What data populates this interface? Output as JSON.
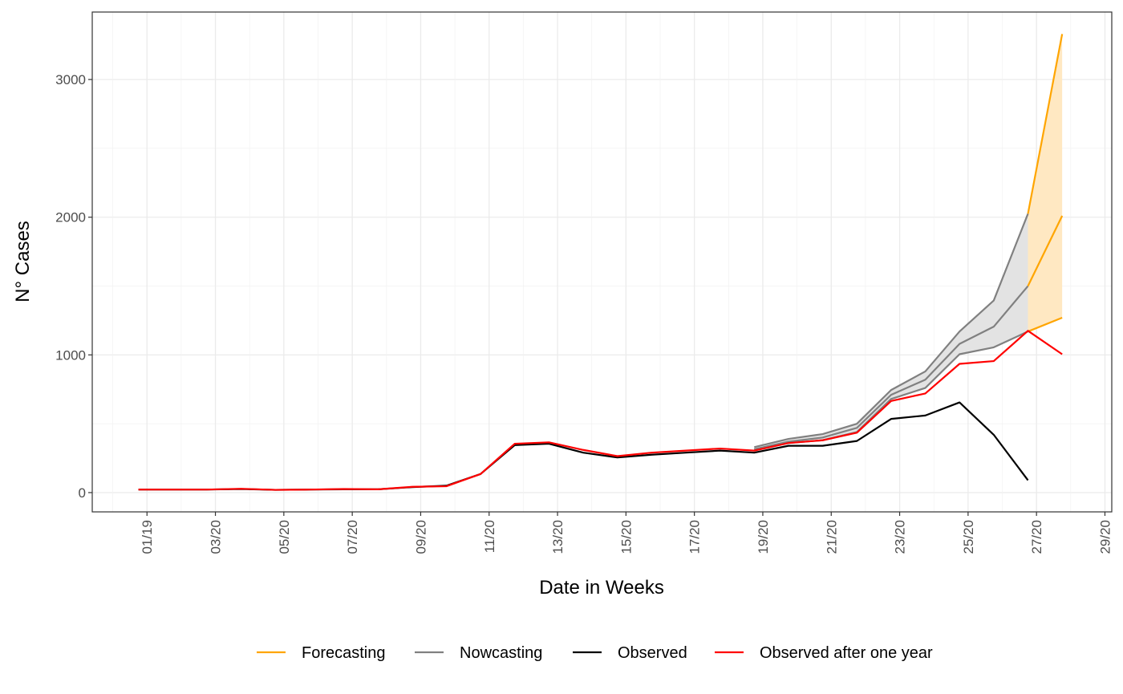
{
  "chart_data": {
    "type": "line",
    "xlabel": "Date in Weeks",
    "ylabel": "N° Cases",
    "grid": true,
    "legend_position": "bottom",
    "ylim": [
      -140,
      3490
    ],
    "y_ticks": [
      0,
      1000,
      2000,
      3000
    ],
    "y_tick_labels": [
      "0",
      "1000",
      "2000",
      "3000"
    ],
    "x_tick_labels": [
      "01/19",
      "03/20",
      "05/20",
      "07/20",
      "09/20",
      "11/20",
      "13/20",
      "15/20",
      "17/20",
      "19/20",
      "21/20",
      "23/20",
      "25/20",
      "27/20",
      "29/20"
    ],
    "x_tick_weeks": [
      1,
      3,
      5,
      7,
      9,
      11,
      13,
      15,
      17,
      19,
      21,
      23,
      25,
      27,
      29
    ],
    "x_range_weeks": [
      -0.6,
      29.2
    ],
    "colors": {
      "forecasting": "#FFA500",
      "forecasting_band": "#FFE8C2",
      "nowcasting": "#808080",
      "nowcasting_band": "#E3E3E3",
      "observed": "#000000",
      "observed_after_one_year": "#FF0000"
    },
    "series": [
      {
        "name": "Observed",
        "color_key": "observed",
        "x": [
          0.75,
          1.75,
          2.75,
          3.75,
          4.75,
          5.75,
          6.75,
          7.75,
          8.75,
          9.75,
          10.75,
          11.75,
          12.75,
          13.75,
          14.75,
          15.75,
          16.75,
          17.75,
          18.75,
          19.75,
          20.75,
          21.75,
          22.75,
          23.75,
          24.75,
          25.75,
          26.75
        ],
        "y": [
          22,
          22,
          22,
          26,
          20,
          22,
          24,
          24,
          40,
          50,
          135,
          345,
          355,
          290,
          255,
          275,
          290,
          305,
          290,
          340,
          340,
          375,
          535,
          560,
          655,
          420,
          90
        ]
      },
      {
        "name": "Observed after one year",
        "color_key": "observed_after_one_year",
        "x": [
          0.75,
          1.75,
          2.75,
          3.75,
          4.75,
          5.75,
          6.75,
          7.75,
          8.75,
          9.75,
          10.75,
          11.75,
          12.75,
          13.75,
          14.75,
          15.75,
          16.75,
          17.75,
          18.75,
          19.75,
          20.75,
          21.75,
          22.75,
          23.75,
          24.75,
          25.75,
          26.75,
          27.75
        ],
        "y": [
          22,
          22,
          22,
          28,
          20,
          22,
          26,
          24,
          42,
          46,
          135,
          355,
          365,
          310,
          265,
          290,
          305,
          320,
          305,
          360,
          380,
          435,
          665,
          720,
          935,
          955,
          1175,
          1005
        ]
      },
      {
        "name": "Nowcasting",
        "color_key": "nowcasting",
        "x": [
          18.75,
          19.75,
          20.75,
          21.75,
          22.75,
          23.75,
          24.75,
          25.75,
          26.75
        ],
        "y": [
          315,
          370,
          400,
          470,
          710,
          820,
          1080,
          1205,
          1500
        ],
        "lower": [
          315,
          360,
          380,
          440,
          680,
          760,
          1005,
          1055,
          1170
        ],
        "upper": [
          330,
          390,
          425,
          500,
          745,
          880,
          1170,
          1395,
          2025
        ]
      },
      {
        "name": "Forecasting",
        "color_key": "forecasting",
        "x": [
          26.75,
          27.75
        ],
        "y": [
          1500,
          2010
        ],
        "lower": [
          1170,
          1270
        ],
        "upper": [
          2025,
          3330
        ]
      }
    ],
    "legend": [
      {
        "label": "Forecasting",
        "color_key": "forecasting"
      },
      {
        "label": "Nowcasting",
        "color_key": "nowcasting"
      },
      {
        "label": "Observed",
        "color_key": "observed"
      },
      {
        "label": "Observed after one year",
        "color_key": "observed_after_one_year"
      }
    ]
  }
}
